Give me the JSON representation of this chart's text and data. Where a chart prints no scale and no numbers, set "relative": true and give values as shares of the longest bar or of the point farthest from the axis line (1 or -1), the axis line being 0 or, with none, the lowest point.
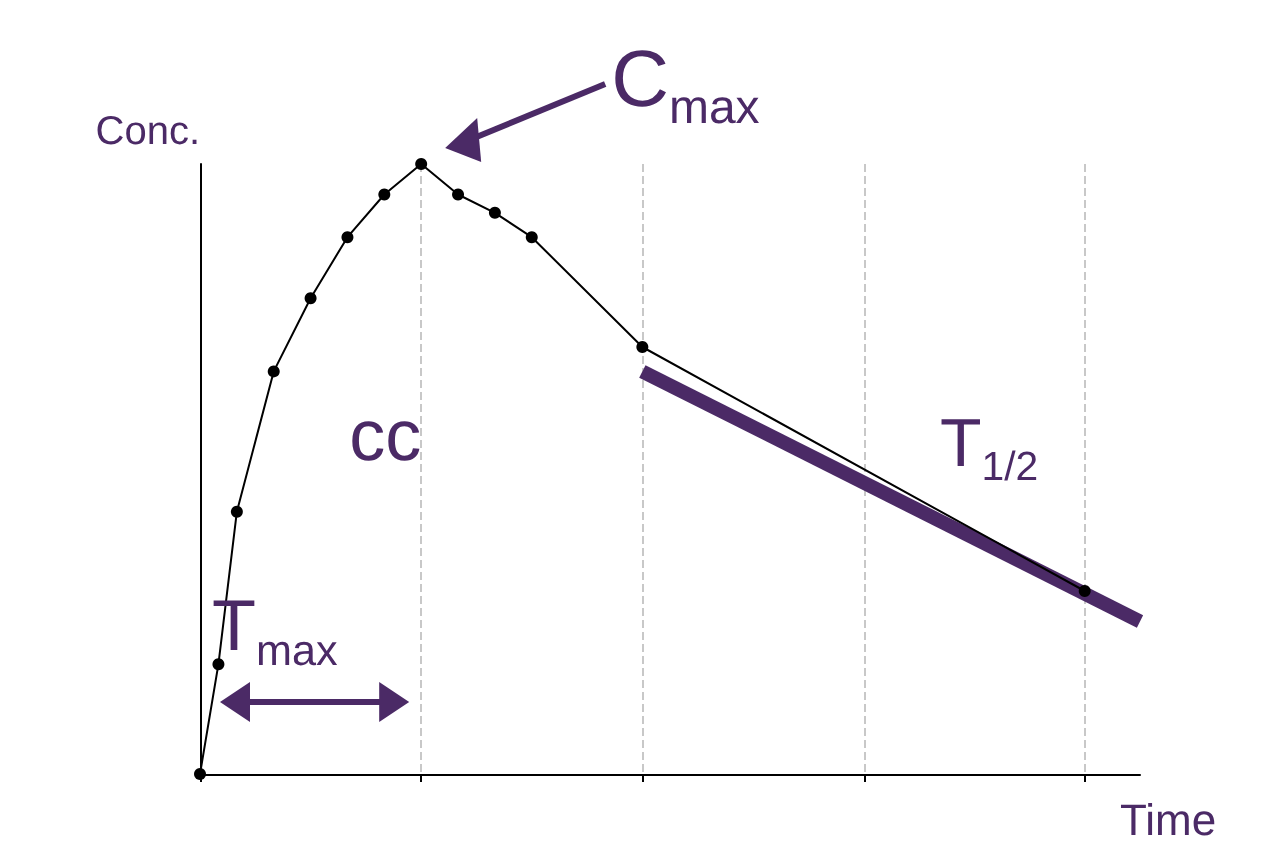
{
  "chart_data": {
    "type": "line",
    "relative": true,
    "xlabel": "Time",
    "ylabel": "Conc.",
    "categories": [
      null,
      null,
      null,
      null,
      null,
      null,
      null,
      null,
      null,
      null,
      null,
      null,
      null,
      null,
      null,
      null,
      null,
      null,
      null,
      null,
      null,
      null,
      null,
      null,
      null,
      null,
      null,
      null,
      null,
      null,
      null,
      null,
      null,
      null,
      null,
      null,
      null,
      null,
      null,
      null,
      null,
      null,
      null,
      null,
      null,
      null,
      null,
      null,
      null,
      null,
      null,
      null
    ],
    "grid": "x",
    "marker": "circle",
    "line_style": "solid",
    "series": [
      {
        "color": "#000000",
        "values": [
          0,
          0.18,
          0.43,
          null,
          0.66,
          null,
          0.78,
          null,
          0.88,
          null,
          0.95,
          null,
          1,
          null,
          0.95,
          null,
          0.92,
          null,
          0.88,
          null,
          null,
          null,
          null,
          null,
          0.7,
          null,
          null,
          null,
          null,
          null,
          null,
          null,
          null,
          null,
          null,
          null,
          null,
          null,
          null,
          null,
          null,
          null,
          null,
          null,
          null,
          null,
          null,
          null,
          0.3,
          null,
          null,
          null
        ]
      },
      {
        "type": "line",
        "color": "#4b2a66",
        "marker": "none",
        "values": [
          null,
          null,
          null,
          null,
          null,
          null,
          null,
          null,
          null,
          null,
          null,
          null,
          null,
          null,
          null,
          null,
          null,
          null,
          null,
          null,
          null,
          null,
          null,
          null,
          0.66,
          null,
          null,
          null,
          null,
          null,
          null,
          null,
          null,
          null,
          null,
          null,
          null,
          null,
          null,
          null,
          null,
          null,
          null,
          null,
          null,
          null,
          null,
          null,
          null,
          null,
          null,
          0.25
        ]
      }
    ],
    "annotations": [
      "C$_{max}$",
      "T$_{max}$",
      "T$_{1/2}$",
      "cc"
    ]
  }
}
